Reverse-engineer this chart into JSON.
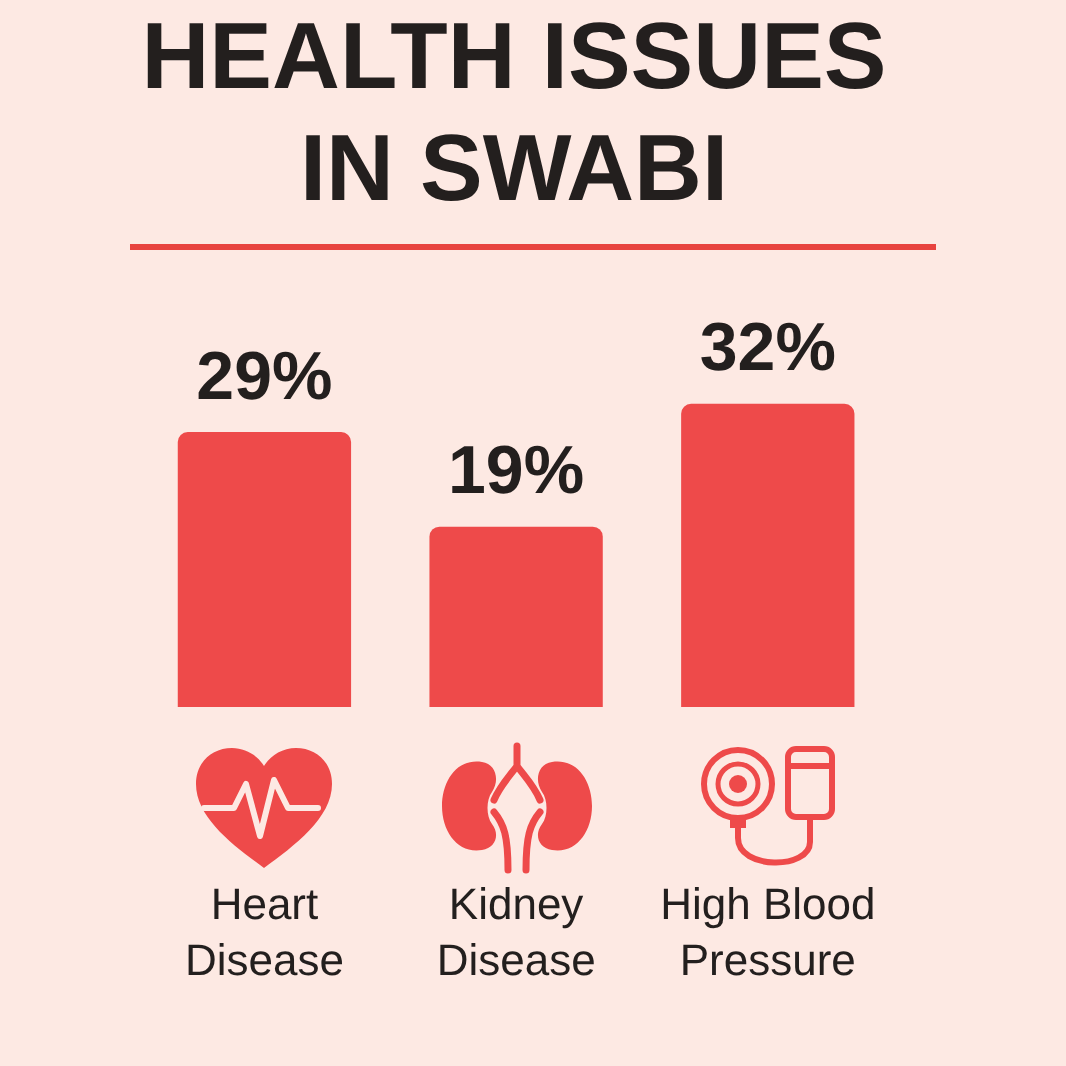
{
  "chart_data": {
    "type": "bar",
    "title": "HEALTH ISSUES IN SWABI",
    "categories": [
      "Heart Disease",
      "Kidney Disease",
      "High Blood Pressure"
    ],
    "values": [
      29,
      19,
      32
    ],
    "value_labels": [
      "29%",
      "19%",
      "32%"
    ],
    "color": "#ee4a4a",
    "tick_labels": "x"
  }
}
